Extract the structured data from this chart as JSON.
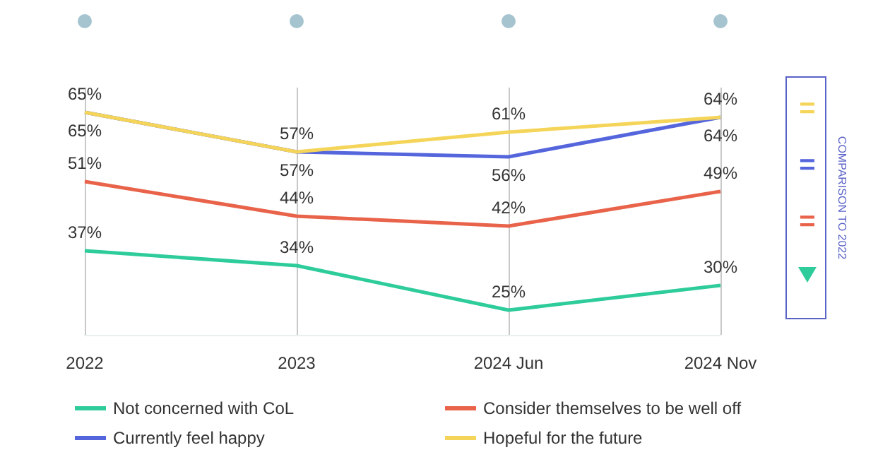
{
  "chart_data": {
    "type": "line",
    "categories": [
      "2022",
      "2023",
      "2024 Jun",
      "2024 Nov"
    ],
    "series": [
      {
        "name": "Not concerned with CoL",
        "color": "#2ecc9a",
        "values": [
          37,
          34,
          25,
          30
        ],
        "value_labels": [
          "37%",
          "34%",
          "25%",
          "30%"
        ]
      },
      {
        "name": "Consider themselves to be well off",
        "color": "#e8634a",
        "values": [
          51,
          44,
          42,
          49
        ],
        "value_labels": [
          "51%",
          "44%",
          "42%",
          "49%"
        ]
      },
      {
        "name": "Currently feel happy",
        "color": "#5566dd",
        "values": [
          65,
          57,
          56,
          64
        ],
        "value_labels": [
          "65%",
          "57%",
          "56%",
          "64%"
        ]
      },
      {
        "name": "Hopeful for the future",
        "color": "#f5d559",
        "values": [
          65,
          57,
          61,
          64
        ],
        "value_labels": [
          "65%",
          "57%",
          "61%",
          "64%"
        ]
      }
    ],
    "grid": "x",
    "legend": "bottom",
    "marker": "none",
    "line_style": "solid",
    "tick_labels": "x",
    "annotations": [
      "COMPARISON TO 2022",
      "=",
      "=",
      "="
    ]
  }
}
